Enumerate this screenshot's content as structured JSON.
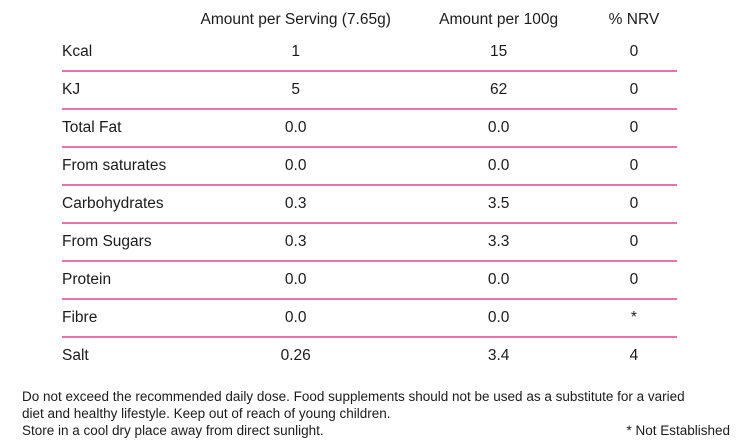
{
  "table": {
    "headers": {
      "label": "",
      "per_serving": "Amount per Serving (7.65g)",
      "per_100g": "Amount per 100g",
      "nrv": "% NRV"
    },
    "rows": [
      {
        "label": "Kcal",
        "per_serving": "1",
        "per_100g": "15",
        "nrv": "0"
      },
      {
        "label": "KJ",
        "per_serving": "5",
        "per_100g": "62",
        "nrv": "0"
      },
      {
        "label": "Total Fat",
        "per_serving": "0.0",
        "per_100g": "0.0",
        "nrv": "0"
      },
      {
        "label": "From saturates",
        "per_serving": "0.0",
        "per_100g": "0.0",
        "nrv": "0"
      },
      {
        "label": "Carbohydrates",
        "per_serving": "0.3",
        "per_100g": "3.5",
        "nrv": "0"
      },
      {
        "label": "From Sugars",
        "per_serving": "0.3",
        "per_100g": "3.3",
        "nrv": "0"
      },
      {
        "label": "Protein",
        "per_serving": "0.0",
        "per_100g": "0.0",
        "nrv": "0"
      },
      {
        "label": "Fibre",
        "per_serving": "0.0",
        "per_100g": "0.0",
        "nrv": "*"
      },
      {
        "label": "Salt",
        "per_serving": "0.26",
        "per_100g": "3.4",
        "nrv": "4"
      }
    ]
  },
  "footer": {
    "warning_lines": [
      "Do not exceed the recommended daily dose. Food supplements should not be used as a substitute for a varied",
      "diet and healthy lifestyle. Keep out of reach of young children."
    ],
    "storage_text": "Store in a cool dry place away from direct sunlight.",
    "footnote": "* Not Established"
  },
  "colors": {
    "divider_pink": "#e673ad",
    "divider_pink_light": "#f6bcd9",
    "text": "#1b1b1b"
  }
}
